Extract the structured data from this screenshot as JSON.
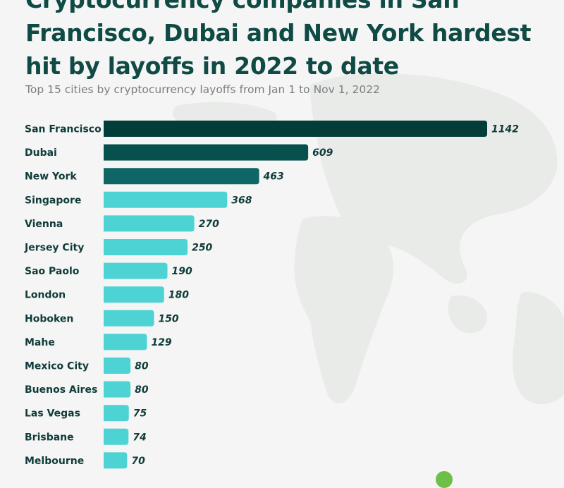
{
  "title": "Cryptocurrency companies in San Francisco, Dubai and New York hardest hit by layoffs in 2022 to date",
  "subtitle": "Top 15 cities by cryptocurrency layoffs from Jan 1 to Nov 1, 2022",
  "colors": {
    "background": "#f4f5f4",
    "title": "#0f4a45",
    "highlight_1": "#023d3a",
    "highlight_2": "#07504d",
    "highlight_3": "#0e6764",
    "default_bar": "#4dd3d4",
    "map": "#e9ebe9",
    "logo": "#6cc04a"
  },
  "chart_data": {
    "type": "bar",
    "orientation": "horizontal",
    "title": "Cryptocurrency companies in San Francisco, Dubai and New York hardest hit by layoffs in 2022 to date",
    "subtitle": "Top 15 cities by cryptocurrency layoffs from Jan 1 to Nov 1, 2022",
    "xlabel": "",
    "ylabel": "",
    "xlim": [
      0,
      1142
    ],
    "grid": false,
    "legend": "none",
    "categories": [
      "San Francisco",
      "Dubai",
      "New York",
      "Singapore",
      "Vienna",
      "Jersey City",
      "Sao Paolo",
      "London",
      "Hoboken",
      "Mahe",
      "Mexico City",
      "Buenos Aires",
      "Las Vegas",
      "Brisbane",
      "Melbourne"
    ],
    "values": [
      1142,
      609,
      463,
      368,
      270,
      250,
      190,
      180,
      150,
      129,
      80,
      80,
      75,
      74,
      70
    ],
    "bar_colors": [
      "#023d3a",
      "#07504d",
      "#0e6764",
      "#4dd3d4",
      "#4dd3d4",
      "#4dd3d4",
      "#4dd3d4",
      "#4dd3d4",
      "#4dd3d4",
      "#4dd3d4",
      "#4dd3d4",
      "#4dd3d4",
      "#4dd3d4",
      "#4dd3d4",
      "#4dd3d4"
    ]
  }
}
